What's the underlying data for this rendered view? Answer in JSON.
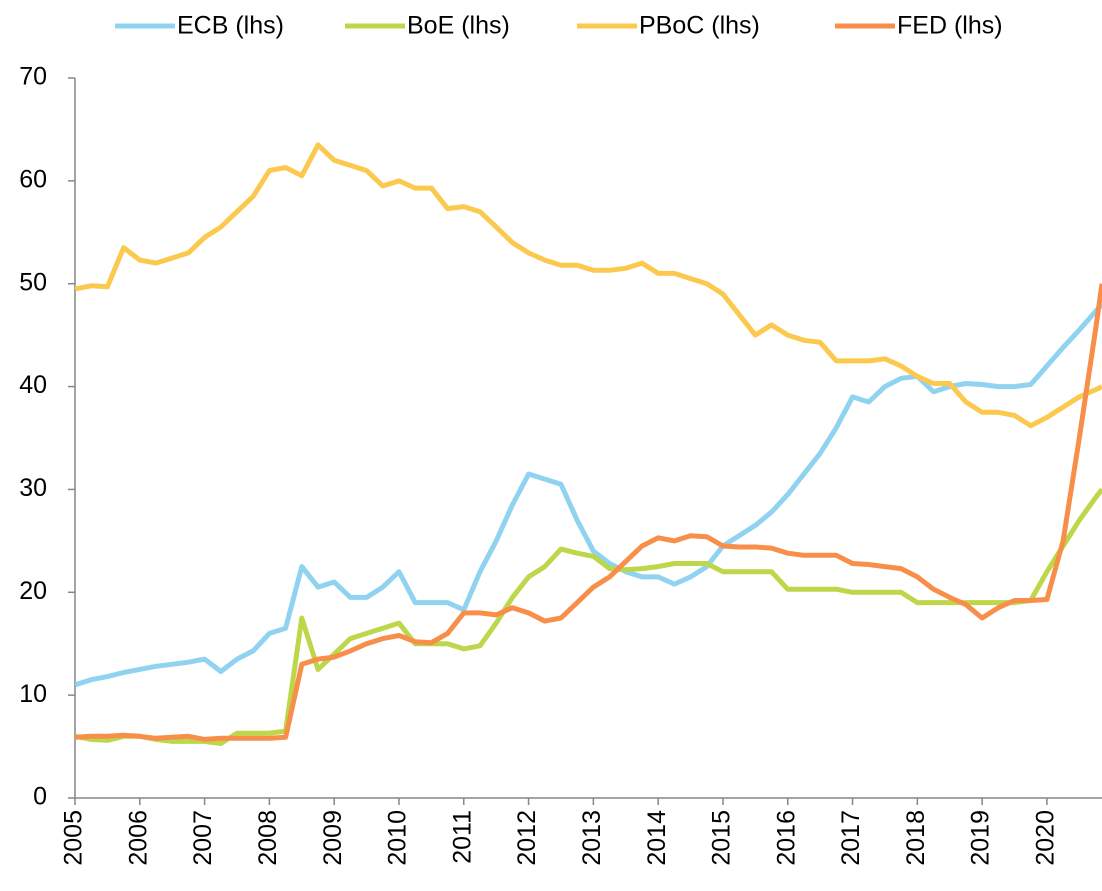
{
  "chart_data": {
    "type": "line",
    "x": [
      2005,
      2005.25,
      2005.5,
      2005.75,
      2006,
      2006.25,
      2006.5,
      2006.75,
      2007,
      2007.25,
      2007.5,
      2007.75,
      2008,
      2008.25,
      2008.5,
      2008.75,
      2009,
      2009.25,
      2009.5,
      2009.75,
      2010,
      2010.25,
      2010.5,
      2010.75,
      2011,
      2011.25,
      2011.5,
      2011.75,
      2012,
      2012.25,
      2012.5,
      2012.75,
      2013,
      2013.25,
      2013.5,
      2013.75,
      2014,
      2014.25,
      2014.5,
      2014.75,
      2015,
      2015.25,
      2015.5,
      2015.75,
      2016,
      2016.25,
      2016.5,
      2016.75,
      2017,
      2017.25,
      2017.5,
      2017.75,
      2018,
      2018.25,
      2018.5,
      2018.75,
      2019,
      2019.25,
      2019.5,
      2019.75,
      2020,
      2020.25,
      2020.5,
      2020.75,
      2020.85
    ],
    "series": [
      {
        "name": "ECB (lhs)",
        "color": "#8fd3f0",
        "values": [
          11,
          11.5,
          11.8,
          12.2,
          12.5,
          12.8,
          13,
          13.2,
          13.5,
          12.3,
          13.5,
          14.3,
          16,
          16.5,
          22.5,
          20.5,
          21,
          19.5,
          19.5,
          20.5,
          22,
          19,
          19,
          19,
          18.3,
          22,
          25,
          28.5,
          31.5,
          31,
          30.5,
          27,
          24,
          22.8,
          22,
          21.5,
          21.5,
          20.8,
          21.5,
          22.5,
          24.5,
          25.5,
          26.5,
          27.8,
          29.5,
          31.5,
          33.5,
          36,
          39,
          38.5,
          40,
          40.8,
          41,
          39.5,
          40,
          40.3,
          40.2,
          40,
          40,
          40.2,
          42,
          43.8,
          45.5,
          47.3,
          48
        ]
      },
      {
        "name": "BoE (lhs)",
        "color": "#bcd74a",
        "values": [
          6,
          5.7,
          5.6,
          6,
          6,
          5.7,
          5.5,
          5.5,
          5.5,
          5.3,
          6.3,
          6.3,
          6.3,
          6.5,
          17.5,
          12.5,
          14,
          15.5,
          16,
          16.5,
          17,
          15,
          15,
          15,
          14.5,
          14.8,
          17,
          19.5,
          21.5,
          22.5,
          24.2,
          23.8,
          23.5,
          22.3,
          22.2,
          22.3,
          22.5,
          22.8,
          22.8,
          22.8,
          22,
          22,
          22,
          22,
          20.3,
          20.3,
          20.3,
          20.3,
          20,
          20,
          20,
          20,
          19,
          19,
          19,
          19,
          19,
          19,
          19,
          19.2,
          22,
          24.5,
          27,
          29.2,
          30
        ]
      },
      {
        "name": "PBoC (lhs)",
        "color": "#fbc94e",
        "values": [
          49.5,
          49.8,
          49.7,
          53.5,
          52.3,
          52,
          52.5,
          53,
          54.5,
          55.5,
          57,
          58.5,
          61,
          61.3,
          60.5,
          63.5,
          62,
          61.5,
          61,
          59.5,
          60,
          59.3,
          59.3,
          57.3,
          57.5,
          57,
          55.5,
          54,
          53,
          52.3,
          51.8,
          51.8,
          51.3,
          51.3,
          51.5,
          52,
          51,
          51,
          50.5,
          50,
          49,
          47,
          45,
          46,
          45,
          44.5,
          44.3,
          42.5,
          42.5,
          42.5,
          42.7,
          42,
          41,
          40.3,
          40.3,
          38.5,
          37.5,
          37.5,
          37.2,
          36.2,
          37,
          38,
          39,
          39.7,
          40
        ]
      },
      {
        "name": "FED (lhs)",
        "color": "#f78f4a",
        "values": [
          5.9,
          6,
          6,
          6.1,
          6,
          5.8,
          5.9,
          6,
          5.7,
          5.8,
          5.8,
          5.8,
          5.8,
          5.9,
          13,
          13.5,
          13.7,
          14.3,
          15,
          15.5,
          15.8,
          15.2,
          15.1,
          16,
          18,
          18,
          17.8,
          18.5,
          18,
          17.2,
          17.5,
          19,
          20.5,
          21.5,
          23,
          24.5,
          25.3,
          25,
          25.5,
          25.4,
          24.5,
          24.4,
          24.4,
          24.3,
          23.8,
          23.6,
          23.6,
          23.6,
          22.8,
          22.7,
          22.5,
          22.3,
          21.5,
          20.3,
          19.5,
          18.8,
          17.5,
          18.5,
          19.2,
          19.2,
          19.3,
          25,
          35,
          45.5,
          50
        ]
      }
    ],
    "xlim": [
      2005,
      2020.85
    ],
    "xticks": [
      2005,
      2006,
      2007,
      2008,
      2009,
      2010,
      2011,
      2012,
      2013,
      2014,
      2015,
      2016,
      2017,
      2018,
      2019,
      2020
    ],
    "ylim": [
      0,
      70
    ],
    "yticks": [
      0,
      10,
      20,
      30,
      40,
      50,
      60,
      70
    ],
    "legend": "top"
  }
}
